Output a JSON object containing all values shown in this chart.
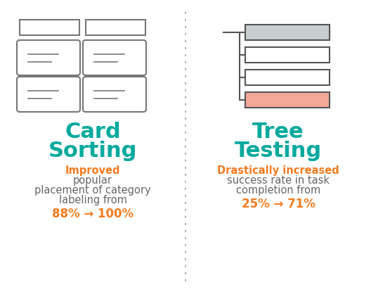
{
  "background_color": "#ffffff",
  "teal_color": "#00a99d",
  "orange_color": "#f47b20",
  "dark_text_color": "#666666",
  "divider_color": "#aaaaaa",
  "card_sort_title_line1": "Card",
  "card_sort_title_line2": "Sorting",
  "tree_test_title_line1": "Tree",
  "tree_test_title_line2": "Testing",
  "card_sort_highlight": "Improved",
  "card_sort_plain": " popular",
  "card_sort_body": "placement of category\nlabeling from",
  "card_sort_stat": "88% → 100%",
  "tree_test_highlight": "Drastically increased",
  "tree_test_body": "success rate in task\ncompletion from",
  "tree_test_stat": "25% → 71%",
  "card_outline_color": "#777777",
  "tree_gray_fill": "#c8cece",
  "tree_pink_fill": "#f4a898",
  "tree_outline_color": "#555555",
  "icon_title_fontsize": 22,
  "body_fontsize": 10.5,
  "stat_fontsize": 12
}
